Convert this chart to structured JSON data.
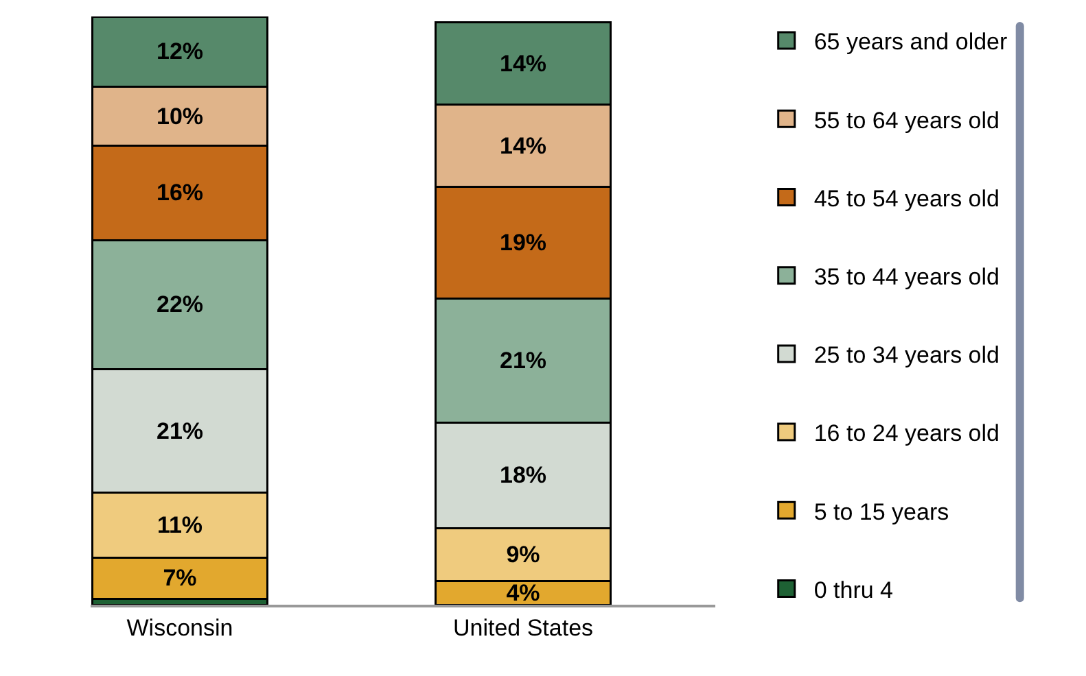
{
  "chart_data": {
    "type": "bar",
    "stacked": true,
    "categories": [
      "Wisconsin",
      "United States"
    ],
    "series": [
      {
        "name": "0 thru 4",
        "color": "#1e6134",
        "values": [
          1,
          null
        ],
        "value_labels": [
          null,
          null
        ]
      },
      {
        "name": "5 to 15 years",
        "color": "#e2a82e",
        "values": [
          7,
          4
        ],
        "value_labels": [
          "7%",
          "4%"
        ]
      },
      {
        "name": "16 to 24 years old",
        "color": "#efcb7e",
        "values": [
          11,
          9
        ],
        "value_labels": [
          "11%",
          "9%"
        ]
      },
      {
        "name": "25 to 34 years old",
        "color": "#d2dad2",
        "values": [
          21,
          18
        ],
        "value_labels": [
          "21%",
          "18%"
        ]
      },
      {
        "name": "35 to 44 years old",
        "color": "#8cb199",
        "values": [
          22,
          21
        ],
        "value_labels": [
          "22%",
          "21%"
        ]
      },
      {
        "name": "45 to 54 years old",
        "color": "#c46a19",
        "values": [
          16,
          19
        ],
        "value_labels": [
          "16%",
          "19%"
        ]
      },
      {
        "name": "55 to 64 years old",
        "color": "#e0b48a",
        "values": [
          10,
          14
        ],
        "value_labels": [
          "10%",
          "14%"
        ]
      },
      {
        "name": "65 years and older",
        "color": "#56896a",
        "values": [
          12,
          14
        ],
        "value_labels": [
          "12%",
          "14%"
        ]
      }
    ],
    "legend": "right"
  }
}
